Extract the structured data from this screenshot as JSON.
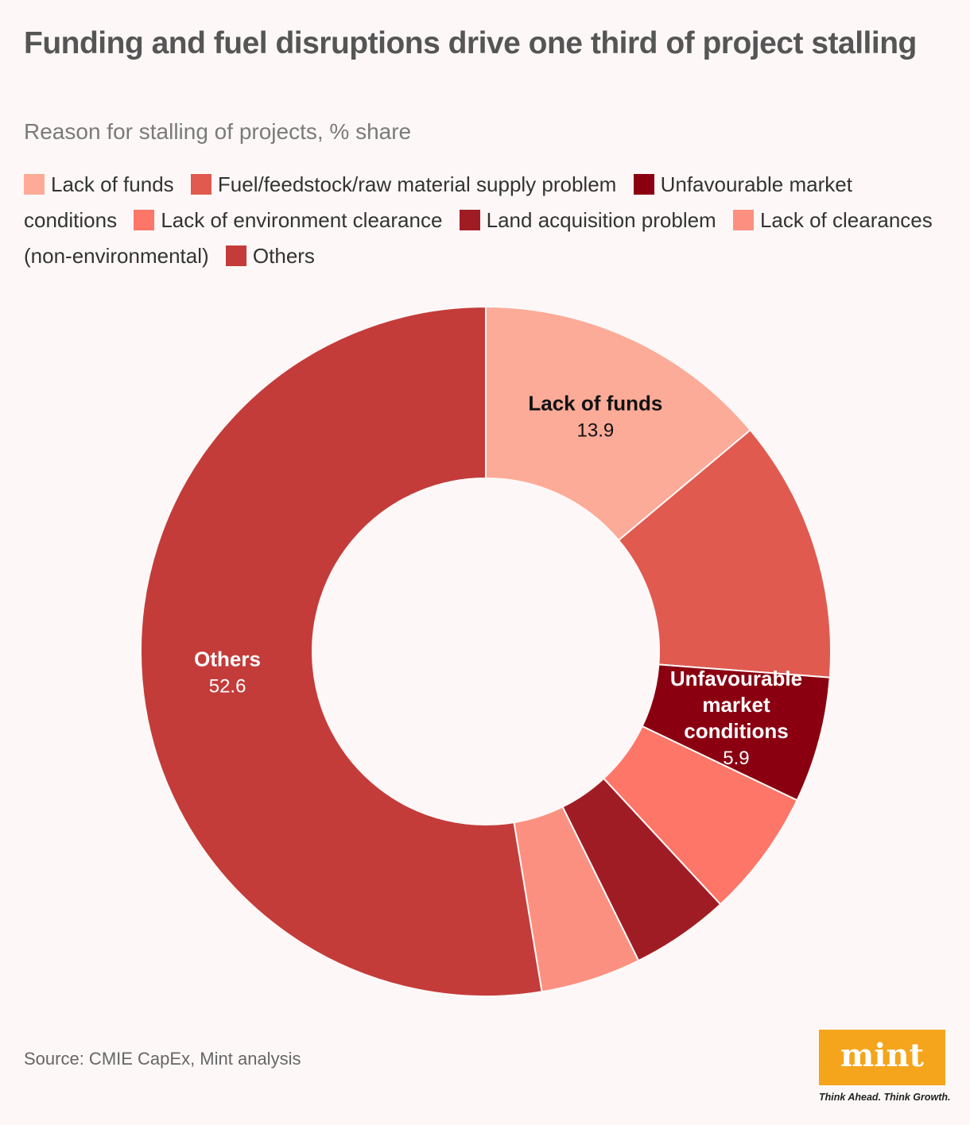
{
  "title": "Funding and fuel disruptions drive one third of project stalling",
  "subtitle": "Reason for stalling of projects, % share",
  "source": "Source: CMIE CapEx, Mint analysis",
  "logo": {
    "text": "mint",
    "tagline": "Think Ahead. Think Growth."
  },
  "chart_data": {
    "type": "pie",
    "donut": true,
    "categories": [
      "Lack of funds",
      "Fuel/feedstock/raw material supply problem",
      "Unfavourable market conditions",
      "Lack of environment clearance",
      "Land acquisition problem",
      "Lack of clearances (non-environmental)",
      "Others"
    ],
    "values": [
      13.9,
      12.3,
      5.9,
      6.0,
      4.6,
      4.7,
      52.6
    ],
    "colors": [
      "#fcab98",
      "#e05a50",
      "#8a0011",
      "#fd7668",
      "#a01c24",
      "#fc9080",
      "#c33c3a"
    ],
    "slice_labels": [
      {
        "index": 0,
        "text": "Lack of funds",
        "value": "13.9"
      },
      {
        "index": 2,
        "text": "Unfavourable market conditions",
        "value": "5.9"
      },
      {
        "index": 6,
        "text": "Others",
        "value": "52.6"
      }
    ],
    "legend_position": "top"
  }
}
